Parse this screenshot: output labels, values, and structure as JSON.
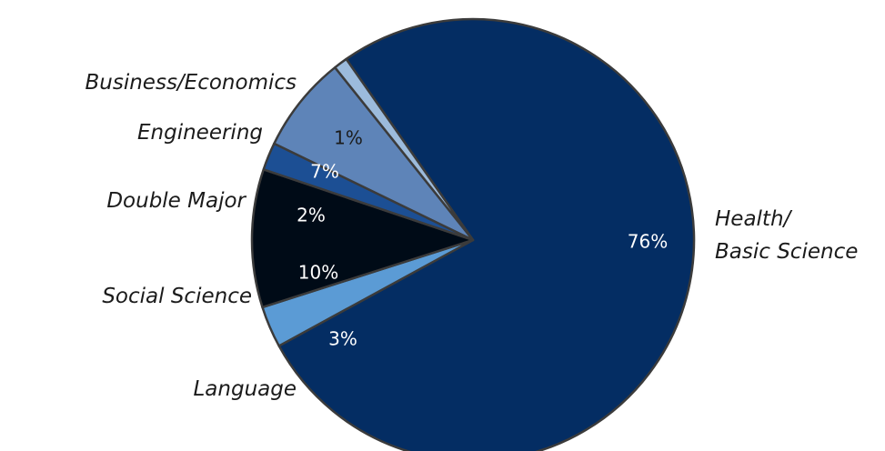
{
  "chart_data": {
    "type": "pie",
    "title": "",
    "slices": [
      {
        "label_lines": [
          "Health/",
          "Basic Science"
        ],
        "value": 76,
        "value_label": "76%",
        "color": "#042d63"
      },
      {
        "label_lines": [
          "Language"
        ],
        "value": 3,
        "value_label": "3%",
        "color": "#5b9bd5"
      },
      {
        "label_lines": [
          "Social Science"
        ],
        "value": 10,
        "value_label": "10%",
        "color": "#000b17"
      },
      {
        "label_lines": [
          "Double Major"
        ],
        "value": 2,
        "value_label": "2%",
        "color": "#1c4f94"
      },
      {
        "label_lines": [
          "Engineering"
        ],
        "value": 7,
        "value_label": "7%",
        "color": "#5e84b8"
      },
      {
        "label_lines": [
          "Business/Economics"
        ],
        "value": 1,
        "value_label": "1%",
        "color": "#9cbbdc"
      }
    ],
    "slice_border_color": "#3b3b3b",
    "label_color": "#1b1b1b"
  }
}
